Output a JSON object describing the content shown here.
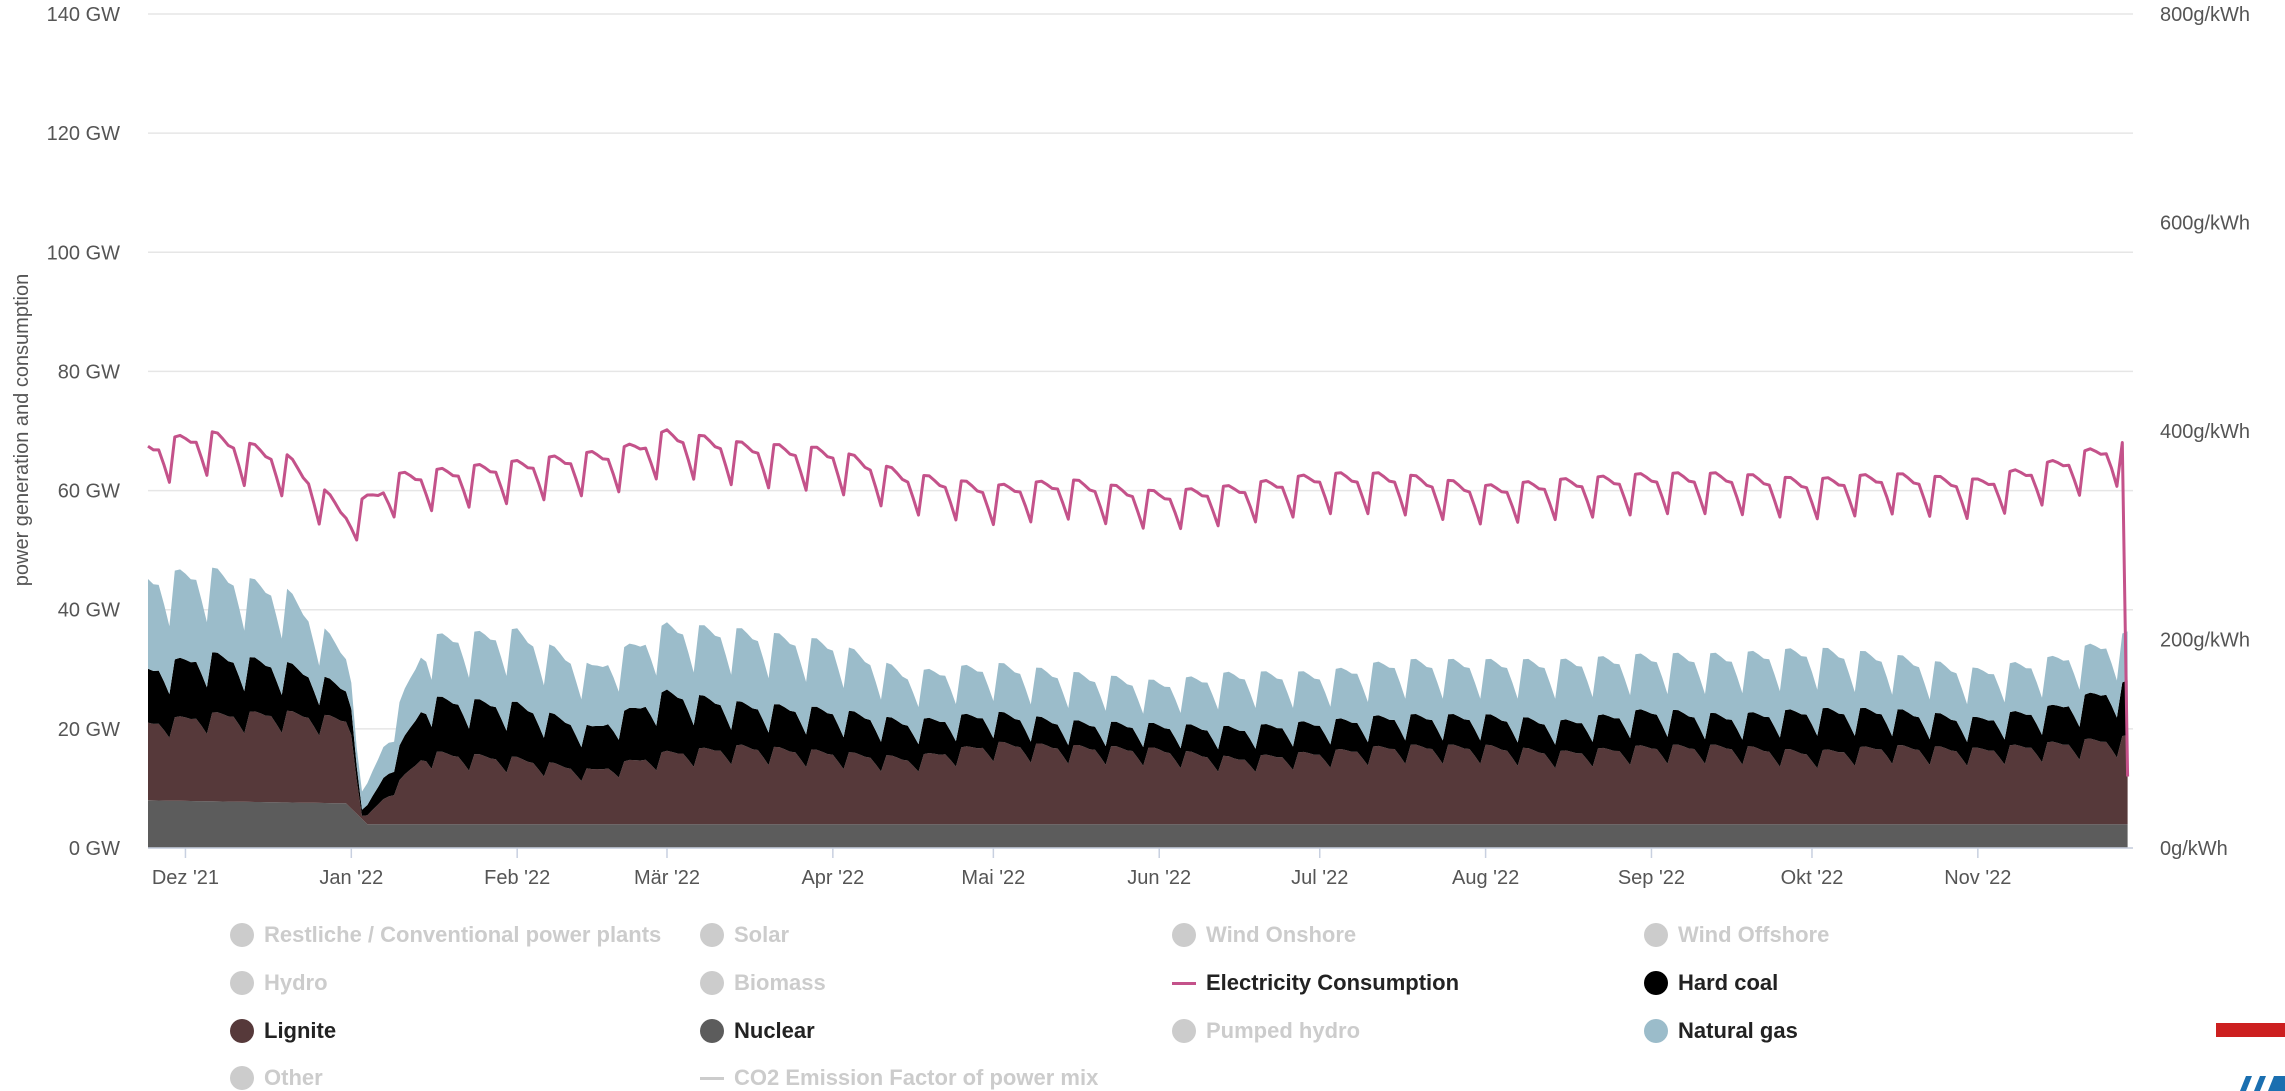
{
  "chart_data": {
    "type": "area",
    "y_axis_title": "power generation and consumption",
    "ylim": [
      0,
      140
    ],
    "yticks": [
      "0 GW",
      "20 GW",
      "40 GW",
      "60 GW",
      "80 GW",
      "100 GW",
      "120 GW",
      "140 GW"
    ],
    "y2lim": [
      0,
      800
    ],
    "y2ticks": [
      "0g/kWh",
      "200g/kWh",
      "400g/kWh",
      "600g/kWh",
      "800g/kWh"
    ],
    "x_start": "2021-11-24",
    "x_end": "2022-11-30",
    "xticks": [
      {
        "date": "2021-12-01",
        "label": "Dez '21"
      },
      {
        "date": "2022-01-01",
        "label": "Jan '22"
      },
      {
        "date": "2022-02-01",
        "label": "Feb '22"
      },
      {
        "date": "2022-03-01",
        "label": "Mär '22"
      },
      {
        "date": "2022-04-01",
        "label": "Apr '22"
      },
      {
        "date": "2022-05-01",
        "label": "Mai '22"
      },
      {
        "date": "2022-06-01",
        "label": "Jun '22"
      },
      {
        "date": "2022-07-01",
        "label": "Jul '22"
      },
      {
        "date": "2022-08-01",
        "label": "Aug '22"
      },
      {
        "date": "2022-09-01",
        "label": "Sep '22"
      },
      {
        "date": "2022-10-01",
        "label": "Okt '22"
      },
      {
        "date": "2022-11-01",
        "label": "Nov '22"
      }
    ],
    "grid": true,
    "legend_position": "bottom",
    "series": [
      {
        "name": "Nuclear",
        "unit": "GW",
        "color": "#5c5c5c",
        "stacked": true,
        "x": [
          "2021-11-24",
          "2021-12-31",
          "2022-01-04",
          "2022-06-01",
          "2022-11-01",
          "2022-11-29"
        ],
        "y": [
          8,
          7.5,
          4,
          4,
          4,
          4
        ]
      },
      {
        "name": "Lignite",
        "unit": "GW",
        "color": "#56393a",
        "stacked": true,
        "x": [
          "2021-11-24",
          "2021-12-05",
          "2021-12-20",
          "2022-01-01",
          "2022-01-03",
          "2022-01-15",
          "2022-02-01",
          "2022-02-15",
          "2022-03-01",
          "2022-03-15",
          "2022-04-01",
          "2022-04-15",
          "2022-05-01",
          "2022-05-15",
          "2022-06-01",
          "2022-06-15",
          "2022-07-01",
          "2022-07-15",
          "2022-08-01",
          "2022-08-15",
          "2022-09-01",
          "2022-09-15",
          "2022-10-01",
          "2022-10-15",
          "2022-11-01",
          "2022-11-15",
          "2022-11-29"
        ],
        "y": [
          13,
          14.5,
          15,
          14,
          0.5,
          12,
          11,
          9,
          12,
          13,
          12,
          11,
          13.5,
          13,
          12.5,
          11,
          12,
          13,
          13,
          12,
          13,
          13,
          12,
          13,
          12.5,
          13.5,
          14.5
        ]
      },
      {
        "name": "Hard coal",
        "unit": "GW",
        "color": "#000000",
        "stacked": true,
        "x": [
          "2021-11-24",
          "2021-12-05",
          "2021-12-20",
          "2022-01-01",
          "2022-01-03",
          "2022-01-15",
          "2022-02-01",
          "2022-02-15",
          "2022-03-01",
          "2022-03-15",
          "2022-04-01",
          "2022-04-15",
          "2022-05-01",
          "2022-05-15",
          "2022-06-01",
          "2022-06-15",
          "2022-07-01",
          "2022-07-15",
          "2022-08-01",
          "2022-08-15",
          "2022-09-01",
          "2022-09-15",
          "2022-10-01",
          "2022-10-15",
          "2022-11-01",
          "2022-11-15",
          "2022-11-29"
        ],
        "y": [
          9,
          10,
          8,
          5,
          1,
          9,
          9,
          7,
          10,
          7,
          7,
          6,
          5,
          4,
          4,
          5,
          5,
          5,
          5,
          5,
          6,
          5,
          7,
          6,
          5,
          6,
          9
        ]
      },
      {
        "name": "Natural gas",
        "unit": "GW",
        "color": "#9bbcca",
        "stacked": true,
        "x": [
          "2021-11-24",
          "2021-12-05",
          "2021-12-20",
          "2022-01-01",
          "2022-01-03",
          "2022-01-15",
          "2022-02-01",
          "2022-02-15",
          "2022-03-01",
          "2022-03-15",
          "2022-04-01",
          "2022-04-15",
          "2022-05-01",
          "2022-05-15",
          "2022-06-01",
          "2022-06-15",
          "2022-07-01",
          "2022-07-15",
          "2022-08-01",
          "2022-08-15",
          "2022-09-01",
          "2022-09-15",
          "2022-10-01",
          "2022-10-15",
          "2022-11-01",
          "2022-11-15",
          "2022-11-29"
        ],
        "y": [
          15,
          14,
          12,
          5,
          3,
          10,
          12,
          10,
          11,
          12,
          11,
          8,
          8,
          8,
          7,
          9,
          8,
          9,
          9,
          10,
          9,
          10,
          10,
          9,
          8,
          8,
          8
        ]
      },
      {
        "name": "Electricity Consumption",
        "unit": "GW",
        "color": "#c4528a",
        "type": "line",
        "x": [
          "2021-11-24",
          "2021-12-05",
          "2021-12-20",
          "2021-12-31",
          "2022-01-10",
          "2022-02-01",
          "2022-02-20",
          "2022-03-01",
          "2022-03-15",
          "2022-04-01",
          "2022-04-15",
          "2022-05-01",
          "2022-05-15",
          "2022-06-01",
          "2022-06-15",
          "2022-07-01",
          "2022-07-15",
          "2022-08-01",
          "2022-08-15",
          "2022-09-01",
          "2022-09-15",
          "2022-10-01",
          "2022-10-15",
          "2022-11-01",
          "2022-11-15",
          "2022-11-26",
          "2022-11-29"
        ],
        "y": [
          66,
          68,
          64,
          55,
          61,
          63,
          65,
          68,
          66,
          65,
          61,
          59,
          60,
          58,
          59,
          61,
          61,
          59,
          60,
          61,
          61,
          60,
          61,
          60,
          63,
          66,
          12
        ]
      }
    ],
    "legend": [
      {
        "label": "Restliche / Conventional power plants",
        "active": false,
        "marker": "dot",
        "color": "#cccccc"
      },
      {
        "label": "Solar",
        "active": false,
        "marker": "dot",
        "color": "#cccccc"
      },
      {
        "label": "Wind Onshore",
        "active": false,
        "marker": "dot",
        "color": "#cccccc"
      },
      {
        "label": "Wind Offshore",
        "active": false,
        "marker": "dot",
        "color": "#cccccc"
      },
      {
        "label": "Hydro",
        "active": false,
        "marker": "dot",
        "color": "#cccccc"
      },
      {
        "label": "Biomass",
        "active": false,
        "marker": "dot",
        "color": "#cccccc"
      },
      {
        "label": "Electricity Consumption",
        "active": true,
        "marker": "line",
        "color": "#c4528a"
      },
      {
        "label": "Hard coal",
        "active": true,
        "marker": "dot",
        "color": "#000000"
      },
      {
        "label": "Lignite",
        "active": true,
        "marker": "dot",
        "color": "#56393a"
      },
      {
        "label": "Nuclear",
        "active": true,
        "marker": "dot",
        "color": "#5c5c5c"
      },
      {
        "label": "Pumped hydro",
        "active": false,
        "marker": "dot",
        "color": "#cccccc"
      },
      {
        "label": "Natural gas",
        "active": true,
        "marker": "dot",
        "color": "#9bbcca"
      },
      {
        "label": "Other",
        "active": false,
        "marker": "dot",
        "color": "#cccccc"
      },
      {
        "label": "CO2 Emission Factor of power mix",
        "active": false,
        "marker": "line",
        "color": "#cccccc"
      }
    ]
  }
}
